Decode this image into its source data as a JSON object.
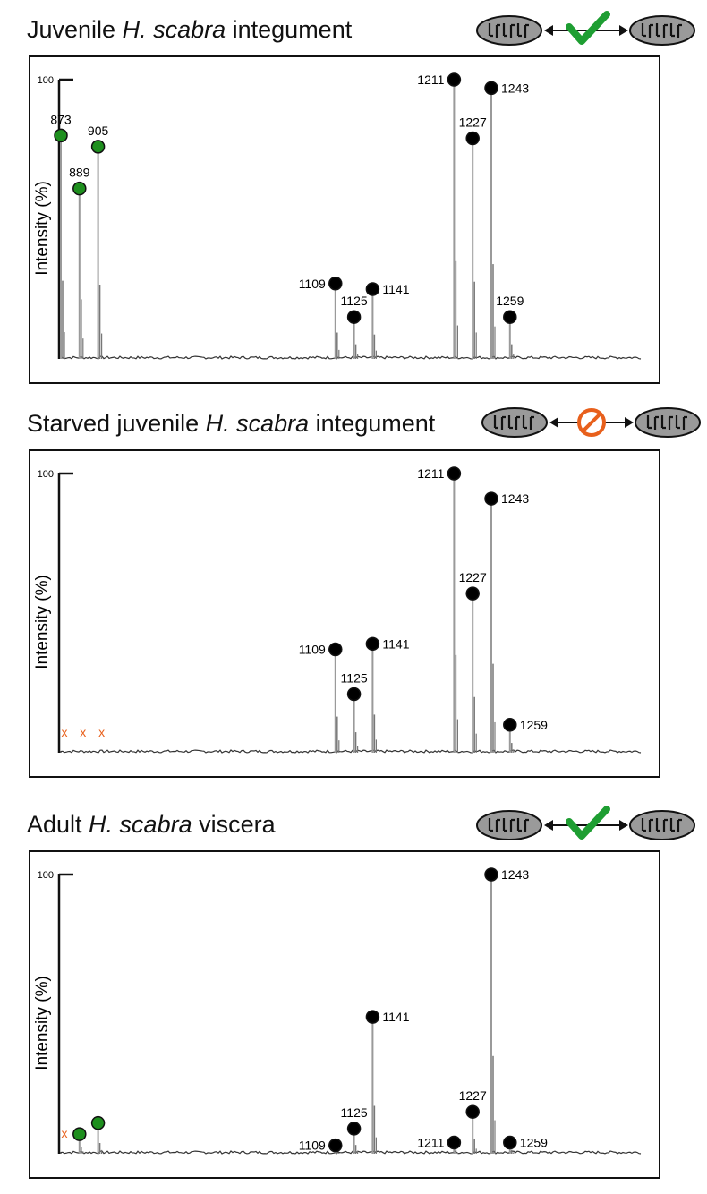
{
  "panels": [
    {
      "title_pre": "Juvenile ",
      "title_species": "H. scabra",
      "title_post": " integument",
      "symbiosis_icon": "mitochondria-with-check-icon",
      "symbiosis_status": "present"
    },
    {
      "title_pre": "Starved juvenile ",
      "title_species": "H. scabra",
      "title_post": " integument",
      "symbiosis_icon": "mitochondria-with-prohibited-icon",
      "symbiosis_status": "absent"
    },
    {
      "title_pre": "Adult ",
      "title_species": "H. scabra",
      "title_post": " viscera",
      "symbiosis_icon": "mitochondria-with-check-icon",
      "symbiosis_status": "present"
    }
  ],
  "colors": {
    "green_marker": "#1e8f1e",
    "black_marker": "#000000",
    "absent_marker": "#e8601c",
    "check": "#1e9e32",
    "prohibited": "#e8601c",
    "spectrum": "#9a9a9a"
  },
  "chart_data": [
    {
      "type": "scatter",
      "subtype": "mass-spectrum",
      "ylabel": "Intensity (%)",
      "ytick": "100",
      "ylim": [
        0,
        100
      ],
      "x": [
        873,
        889,
        905,
        1109,
        1125,
        1141,
        1211,
        1227,
        1243,
        1259
      ],
      "series": [
        {
          "color_class": "green",
          "x": [
            873,
            889,
            905
          ],
          "y": [
            80,
            61,
            76
          ],
          "labels": [
            "873",
            "889",
            "905"
          ]
        },
        {
          "color_class": "black",
          "x": [
            1109,
            1125,
            1141,
            1211,
            1227,
            1243,
            1259
          ],
          "y": [
            27,
            15,
            25,
            100,
            79,
            97,
            15
          ],
          "labels": [
            "1109",
            "1125",
            "1141",
            "1211",
            "1227",
            "1243",
            "1259"
          ]
        }
      ],
      "absent_markers": []
    },
    {
      "type": "scatter",
      "subtype": "mass-spectrum",
      "ylabel": "Intensity (%)",
      "ytick": "100",
      "ylim": [
        0,
        100
      ],
      "x": [
        1109,
        1125,
        1141,
        1211,
        1227,
        1243,
        1259
      ],
      "series": [
        {
          "color_class": "black",
          "x": [
            1109,
            1125,
            1141,
            1211,
            1227,
            1243,
            1259
          ],
          "y": [
            37,
            21,
            39,
            100,
            57,
            91,
            10
          ],
          "labels": [
            "1109",
            "1125",
            "1141",
            "1211",
            "1227",
            "1243",
            "1259"
          ]
        }
      ],
      "absent_markers": [
        {
          "x": 873,
          "label": "x"
        },
        {
          "x": 889,
          "label": "x"
        },
        {
          "x": 905,
          "label": "x"
        }
      ]
    },
    {
      "type": "scatter",
      "subtype": "mass-spectrum",
      "ylabel": "Intensity (%)",
      "ytick": "100",
      "ylim": [
        0,
        100
      ],
      "x": [
        873,
        889,
        905,
        1109,
        1125,
        1141,
        1211,
        1227,
        1243,
        1259
      ],
      "series": [
        {
          "color_class": "green",
          "x": [
            889,
            905
          ],
          "y": [
            7,
            11
          ],
          "labels": [
            "",
            ""
          ]
        },
        {
          "color_class": "black",
          "x": [
            1109,
            1125,
            1141,
            1211,
            1227,
            1243,
            1259
          ],
          "y": [
            3,
            9,
            49,
            4,
            15,
            100,
            4
          ],
          "labels": [
            "1109",
            "1125",
            "1141",
            "1211",
            "1227",
            "1243",
            "1259"
          ]
        }
      ],
      "absent_markers": [
        {
          "x": 873,
          "label": "x"
        }
      ]
    }
  ]
}
